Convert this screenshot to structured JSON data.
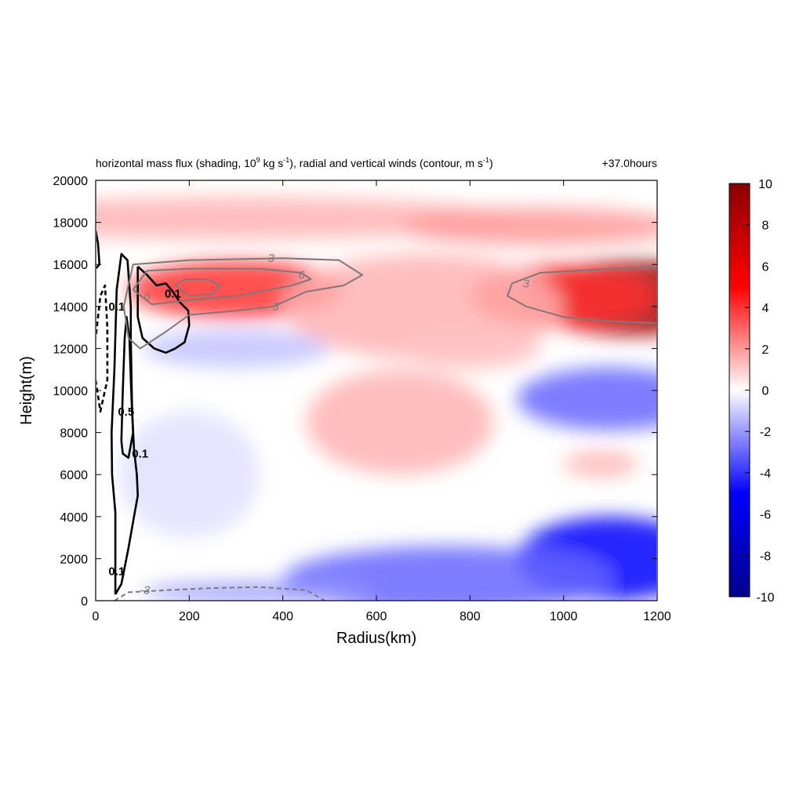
{
  "chart_data": {
    "type": "heatmap",
    "title": "horizontal mass flux (shading, 10",
    "title_sup1": "9",
    "title_mid": " kg s",
    "title_sup2": "-1",
    "title_mid2": "), radial and vertical winds (contour, m s",
    "title_sup3": "-1",
    "title_end": ")",
    "time_label": "+37.0hours",
    "xlabel": "Radius(km)",
    "ylabel": "Height(m)",
    "xlim": [
      0,
      1200
    ],
    "ylim": [
      0,
      20000
    ],
    "x_ticks": [
      0,
      200,
      400,
      600,
      800,
      1000,
      1200
    ],
    "y_ticks": [
      0,
      2000,
      4000,
      6000,
      8000,
      10000,
      12000,
      14000,
      16000,
      18000,
      20000
    ],
    "colorbar": {
      "min": -10,
      "max": 10,
      "ticks": [
        10,
        8,
        6,
        4,
        2,
        0,
        -2,
        -4,
        -6,
        -8,
        -10
      ],
      "colors": [
        "#00008b",
        "#0000ff",
        "#ffffff",
        "#ff0000",
        "#8b0000"
      ]
    },
    "shading_blobs": [
      {
        "x": 1150,
        "y": 14400,
        "rx": 230,
        "ry": 1800,
        "value": 9
      },
      {
        "x": 1000,
        "y": 14500,
        "rx": 200,
        "ry": 1500,
        "value": 4
      },
      {
        "x": 300,
        "y": 14800,
        "rx": 230,
        "ry": 1400,
        "value": 4
      },
      {
        "x": 300,
        "y": 18200,
        "rx": 600,
        "ry": 1000,
        "value": 1.5
      },
      {
        "x": 950,
        "y": 17800,
        "rx": 300,
        "ry": 900,
        "value": 2
      },
      {
        "x": 700,
        "y": 14000,
        "rx": 300,
        "ry": 2500,
        "value": 1.5
      },
      {
        "x": 650,
        "y": 8500,
        "rx": 200,
        "ry": 2500,
        "value": 1.5
      },
      {
        "x": 800,
        "y": 12000,
        "rx": 150,
        "ry": 1000,
        "value": 1.2
      },
      {
        "x": 1080,
        "y": 6500,
        "rx": 80,
        "ry": 600,
        "value": 1.5
      },
      {
        "x": 1100,
        "y": 9600,
        "rx": 200,
        "ry": 1500,
        "value": -3
      },
      {
        "x": 1100,
        "y": 2000,
        "rx": 200,
        "ry": 2000,
        "value": -5
      },
      {
        "x": 750,
        "y": 1000,
        "rx": 350,
        "ry": 1600,
        "value": -3
      },
      {
        "x": 350,
        "y": 400,
        "rx": 250,
        "ry": 500,
        "value": -2
      },
      {
        "x": 300,
        "y": 12000,
        "rx": 200,
        "ry": 900,
        "value": -1.2
      },
      {
        "x": 200,
        "y": 6000,
        "rx": 150,
        "ry": 3000,
        "value": -0.6
      }
    ],
    "contours": [
      {
        "level": "0.1",
        "color": "black",
        "dash": false,
        "label_at": [
          [
            45,
            14000
          ],
          [
            95,
            7000
          ],
          [
            45,
            1400
          ]
        ],
        "points": [
          [
            42,
            300
          ],
          [
            42,
            1800
          ],
          [
            42,
            4200
          ],
          [
            35,
            6000
          ],
          [
            34,
            8000
          ],
          [
            40,
            11000
          ],
          [
            45,
            14800
          ],
          [
            55,
            16500
          ],
          [
            68,
            16200
          ],
          [
            75,
            14000
          ],
          [
            75,
            12500
          ],
          [
            78,
            9000
          ],
          [
            82,
            7200
          ],
          [
            88,
            6000
          ],
          [
            90,
            5000
          ],
          [
            82,
            4000
          ],
          [
            70,
            2500
          ],
          [
            55,
            800
          ],
          [
            42,
            300
          ]
        ]
      },
      {
        "level": "0.5",
        "color": "black",
        "dash": false,
        "label_at": [
          [
            65,
            9000
          ]
        ],
        "points": [
          [
            55,
            7600
          ],
          [
            58,
            10000
          ],
          [
            62,
            12500
          ],
          [
            66,
            13500
          ],
          [
            72,
            12500
          ],
          [
            76,
            10000
          ],
          [
            80,
            8000
          ],
          [
            70,
            6800
          ],
          [
            58,
            7000
          ],
          [
            55,
            7600
          ]
        ]
      },
      {
        "level": "0.1",
        "color": "black",
        "dash": false,
        "label_at": [
          [
            165,
            14600
          ]
        ],
        "points": [
          [
            90,
            15900
          ],
          [
            110,
            15500
          ],
          [
            130,
            15000
          ],
          [
            150,
            15100
          ],
          [
            165,
            14700
          ],
          [
            180,
            14200
          ],
          [
            198,
            13800
          ],
          [
            200,
            13100
          ],
          [
            190,
            12300
          ],
          [
            170,
            12000
          ],
          [
            150,
            11800
          ],
          [
            125,
            12000
          ],
          [
            100,
            12500
          ],
          [
            90,
            13500
          ],
          [
            90,
            15900
          ]
        ]
      },
      {
        "level": "-0.1",
        "color": "black",
        "dash": true,
        "label_at": [],
        "points": [
          [
            0,
            10500
          ],
          [
            10,
            9000
          ],
          [
            15,
            9500
          ],
          [
            25,
            10500
          ],
          [
            25,
            13000
          ],
          [
            20,
            15000
          ],
          [
            10,
            14500
          ],
          [
            0,
            12500
          ]
        ]
      },
      {
        "level": "-0.1",
        "color": "black",
        "dash": false,
        "label_at": [],
        "points": [
          [
            0,
            17600
          ],
          [
            5,
            17000
          ],
          [
            8,
            16000
          ],
          [
            0,
            15800
          ]
        ]
      },
      {
        "level": "3",
        "color": "gray",
        "dash": false,
        "label_at": [
          [
            375,
            16300
          ],
          [
            385,
            14000
          ]
        ],
        "points": [
          [
            60,
            14000
          ],
          [
            80,
            16000
          ],
          [
            200,
            16200
          ],
          [
            400,
            16300
          ],
          [
            520,
            16200
          ],
          [
            570,
            15500
          ],
          [
            530,
            15000
          ],
          [
            450,
            14700
          ],
          [
            380,
            14000
          ],
          [
            300,
            13800
          ],
          [
            200,
            13600
          ],
          [
            150,
            12800
          ],
          [
            95,
            12000
          ],
          [
            70,
            12500
          ],
          [
            60,
            14000
          ]
        ]
      },
      {
        "level": "6",
        "color": "gray",
        "dash": false,
        "label_at": [
          [
            440,
            15500
          ],
          [
            110,
            14500
          ]
        ],
        "points": [
          [
            80,
            14800
          ],
          [
            110,
            15700
          ],
          [
            200,
            15800
          ],
          [
            350,
            15800
          ],
          [
            440,
            15600
          ],
          [
            460,
            15300
          ],
          [
            420,
            15000
          ],
          [
            300,
            14500
          ],
          [
            200,
            14300
          ],
          [
            120,
            14100
          ],
          [
            80,
            14800
          ]
        ]
      },
      {
        "level": "9",
        "color": "gray",
        "dash": false,
        "label_at": [],
        "points": [
          [
            170,
            15000
          ],
          [
            190,
            15300
          ],
          [
            240,
            15300
          ],
          [
            265,
            15000
          ],
          [
            250,
            14600
          ],
          [
            200,
            14500
          ],
          [
            170,
            15000
          ]
        ]
      },
      {
        "level": "3",
        "color": "gray",
        "dash": false,
        "label_at": [
          [
            920,
            15100
          ]
        ],
        "points": [
          [
            1200,
            15900
          ],
          [
            1100,
            15800
          ],
          [
            950,
            15600
          ],
          [
            890,
            15100
          ],
          [
            880,
            14500
          ],
          [
            920,
            14000
          ],
          [
            1000,
            13500
          ],
          [
            1100,
            13300
          ],
          [
            1200,
            13200
          ]
        ]
      },
      {
        "level": "-3",
        "color": "gray",
        "dash": true,
        "label_at": [
          [
            105,
            500
          ]
        ],
        "points": [
          [
            40,
            0
          ],
          [
            70,
            400
          ],
          [
            150,
            500
          ],
          [
            250,
            600
          ],
          [
            350,
            650
          ],
          [
            450,
            500
          ],
          [
            490,
            0
          ]
        ]
      }
    ]
  }
}
